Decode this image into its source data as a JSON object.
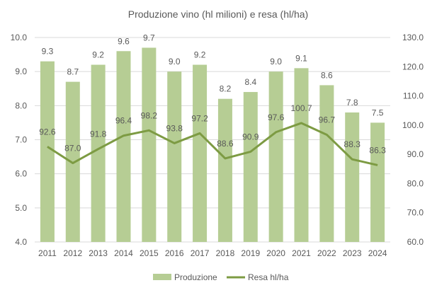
{
  "chart_data": {
    "type": "bar+line",
    "title": "Produzione vino (hl milioni) e resa (hl/ha)",
    "categories": [
      "2011",
      "2012",
      "2013",
      "2014",
      "2015",
      "2016",
      "2017",
      "2018",
      "2019",
      "2020",
      "2021",
      "2022",
      "2023",
      "2024"
    ],
    "series": [
      {
        "name": "Produzione",
        "type": "bar",
        "axis": "left",
        "color": "#b6cd94",
        "values": [
          9.3,
          8.7,
          9.2,
          9.6,
          9.7,
          9.0,
          9.2,
          8.2,
          8.4,
          9.0,
          9.1,
          8.6,
          7.8,
          7.5
        ]
      },
      {
        "name": "Resa hl/ha",
        "type": "line",
        "axis": "right",
        "color": "#7d9b43",
        "values": [
          92.6,
          87.0,
          91.8,
          96.4,
          98.2,
          93.8,
          97.2,
          88.6,
          90.9,
          97.6,
          100.7,
          96.7,
          88.3,
          86.3
        ]
      }
    ],
    "y_left": {
      "min": 4.0,
      "max": 10.0,
      "ticks": [
        "4.0",
        "5.0",
        "6.0",
        "7.0",
        "8.0",
        "9.0",
        "10.0"
      ]
    },
    "y_right": {
      "min": 60.0,
      "max": 130.0,
      "ticks": [
        "60.0",
        "70.0",
        "80.0",
        "90.0",
        "100.0",
        "110.0",
        "120.0",
        "130.0"
      ]
    },
    "grid": true,
    "legend_position": "bottom"
  }
}
